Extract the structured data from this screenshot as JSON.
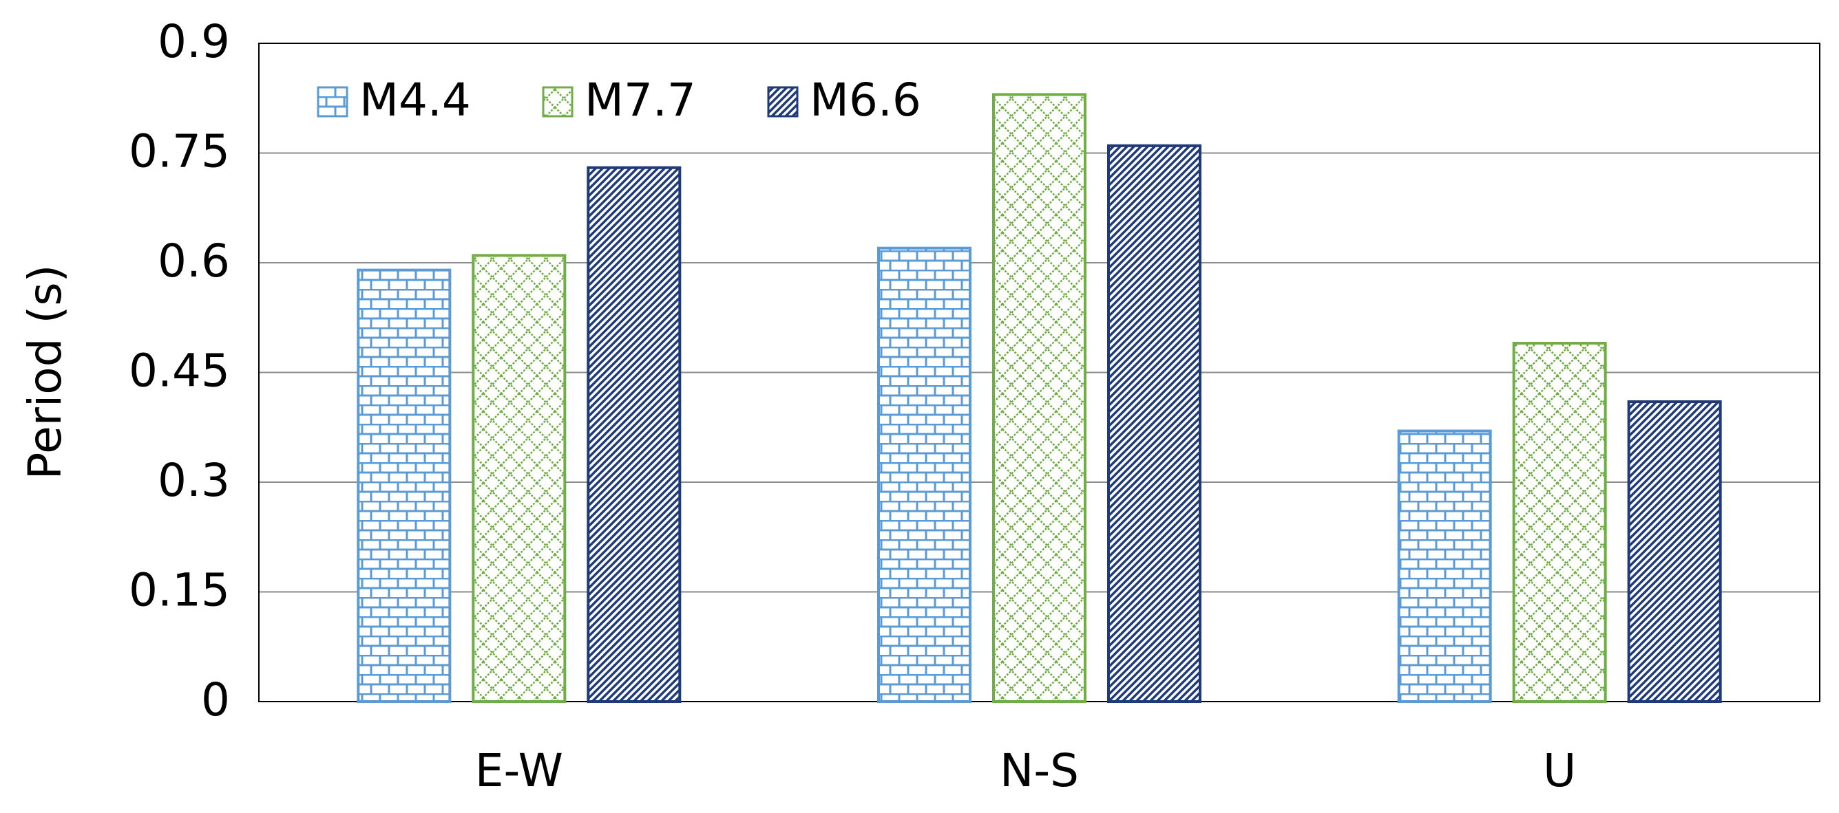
{
  "chart_data": {
    "type": "bar",
    "y_label": "Period (s)",
    "categories": [
      "E-W",
      "N-S",
      "U"
    ],
    "series": [
      {
        "name": "M4.4",
        "color": "#5b9bd5",
        "pattern": "brick",
        "values": [
          0.59,
          0.62,
          0.37
        ]
      },
      {
        "name": "M7.7",
        "color": "#70ad47",
        "pattern": "diamond",
        "values": [
          0.61,
          0.83,
          0.49
        ]
      },
      {
        "name": "M6.6",
        "color": "#1f3a78",
        "pattern": "stripes",
        "values": [
          0.73,
          0.76,
          0.41
        ]
      }
    ],
    "ylim": [
      0,
      0.9
    ],
    "yticks": [
      0,
      0.15,
      0.3,
      0.45,
      0.6,
      0.75,
      0.9
    ],
    "grid": true,
    "legend": "top-left"
  }
}
